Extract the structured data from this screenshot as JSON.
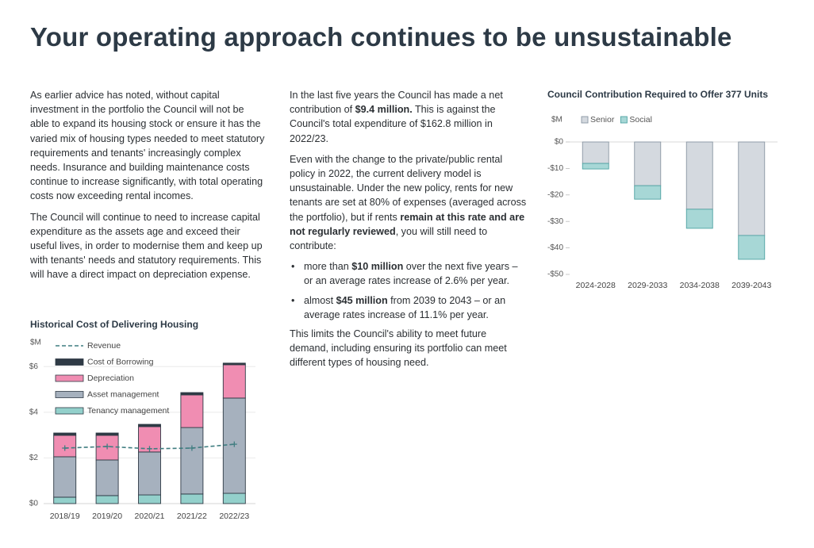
{
  "title": "Your operating approach continues to be unsustainable",
  "left_column": {
    "paragraphs": [
      "As earlier advice has noted, without capital investment in the portfolio the Council will not be able to expand its housing stock or ensure it has the varied mix of housing types needed to meet statutory requirements and tenants' increasingly complex needs. Insurance and building maintenance costs continue to increase significantly, with total operating costs now exceeding rental incomes.",
      "The Council will continue to need to increase capital expenditure as the assets age and exceed their useful lives, in order to modernise them and keep up with tenants' needs and statutory requirements. This will have a direct impact on depreciation expense."
    ]
  },
  "middle_column": {
    "blocks": [
      {
        "bullet": false,
        "runs": [
          {
            "text": "In the last five years the Council has made a net contribution of ",
            "bold": false
          },
          {
            "text": "$9.4 million.",
            "bold": true
          },
          {
            "text": " This is against the Council's total expenditure of $162.8 million in 2022/23.",
            "bold": false
          }
        ]
      },
      {
        "bullet": false,
        "runs": [
          {
            "text": "Even with the change to the private/public rental policy in 2022, the current delivery model is unsustainable. Under the new policy, rents for new tenants are set at 80% of expenses (averaged across the portfolio), but if rents ",
            "bold": false
          },
          {
            "text": "remain at this rate and are not regularly reviewed",
            "bold": true
          },
          {
            "text": ", you will still need to contribute:",
            "bold": false
          }
        ]
      },
      {
        "bullet": true,
        "runs": [
          {
            "text": "more than ",
            "bold": false
          },
          {
            "text": "$10 million",
            "bold": true
          },
          {
            "text": " over the next five years – or an average rates increase of 2.6% per year.",
            "bold": false
          }
        ]
      },
      {
        "bullet": true,
        "runs": [
          {
            "text": "almost ",
            "bold": false
          },
          {
            "text": "$45 million",
            "bold": true
          },
          {
            "text": " from 2039 to 2043 – or an average rates increase of 11.1% per year.",
            "bold": false
          }
        ]
      },
      {
        "bullet": false,
        "runs": [
          {
            "text": "This limits the Council's ability to meet future demand, including ensuring its portfolio can meet different types of housing need.",
            "bold": false
          }
        ]
      }
    ]
  },
  "chart_data": [
    {
      "type": "bar",
      "stacked": true,
      "title": "Historical Cost of Delivering Housing",
      "y_label": "$M",
      "categories": [
        "2018/19",
        "2019/20",
        "2020/21",
        "2021/22",
        "2022/23"
      ],
      "series": [
        {
          "name": "Tenancy management",
          "color": "#93d0cb",
          "values": [
            0.28,
            0.35,
            0.38,
            0.42,
            0.45
          ]
        },
        {
          "name": "Asset management",
          "color": "#a6b1be",
          "values": [
            1.77,
            1.56,
            1.88,
            2.91,
            4.17
          ]
        },
        {
          "name": "Depreciation",
          "color": "#f08db2",
          "values": [
            0.94,
            1.08,
            1.11,
            1.43,
            1.46
          ]
        },
        {
          "name": "Cost of Borrowing",
          "color": "#2f3a45",
          "values": [
            0.1,
            0.1,
            0.1,
            0.1,
            0.07
          ]
        },
        {
          "name": "Revenue",
          "color": "#3f7d80",
          "type": "line",
          "line_style": "dashed",
          "values": [
            2.43,
            2.5,
            2.4,
            2.43,
            2.6
          ]
        }
      ],
      "edgecolor": "#2f3a45",
      "ylim": [
        0,
        6.25
      ],
      "yticks": [
        {
          "value": 0,
          "label": "$0"
        },
        {
          "value": 2,
          "label": "$2"
        },
        {
          "value": 4,
          "label": "$4"
        },
        {
          "value": 6,
          "label": "$6"
        }
      ],
      "grid": true,
      "legend": "upper left"
    },
    {
      "type": "bar",
      "stacked": true,
      "title": "Council Contribution Required to Offer 377 Units",
      "y_label": "$M",
      "categories": [
        "2024-2028",
        "2029-2033",
        "2034-2038",
        "2039-2043"
      ],
      "series": [
        {
          "name": "Senior",
          "color": "#d4d9df",
          "stroke": "#8a96a3",
          "values": [
            -8.1,
            -16.5,
            -25.4,
            -35.3
          ]
        },
        {
          "name": "Social",
          "color": "#a7d7d6",
          "stroke": "#4fa3a3",
          "values": [
            -2.1,
            -5.1,
            -7.2,
            -9.0
          ]
        }
      ],
      "ylim": [
        -50,
        0
      ],
      "yticks": [
        {
          "value": 0,
          "label": "$0"
        },
        {
          "value": -10,
          "label": "-$10"
        },
        {
          "value": -20,
          "label": "-$20"
        },
        {
          "value": -30,
          "label": "-$30"
        },
        {
          "value": -40,
          "label": "-$40"
        },
        {
          "value": -50,
          "label": "-$50"
        }
      ],
      "grid": false,
      "legend": "top"
    }
  ]
}
